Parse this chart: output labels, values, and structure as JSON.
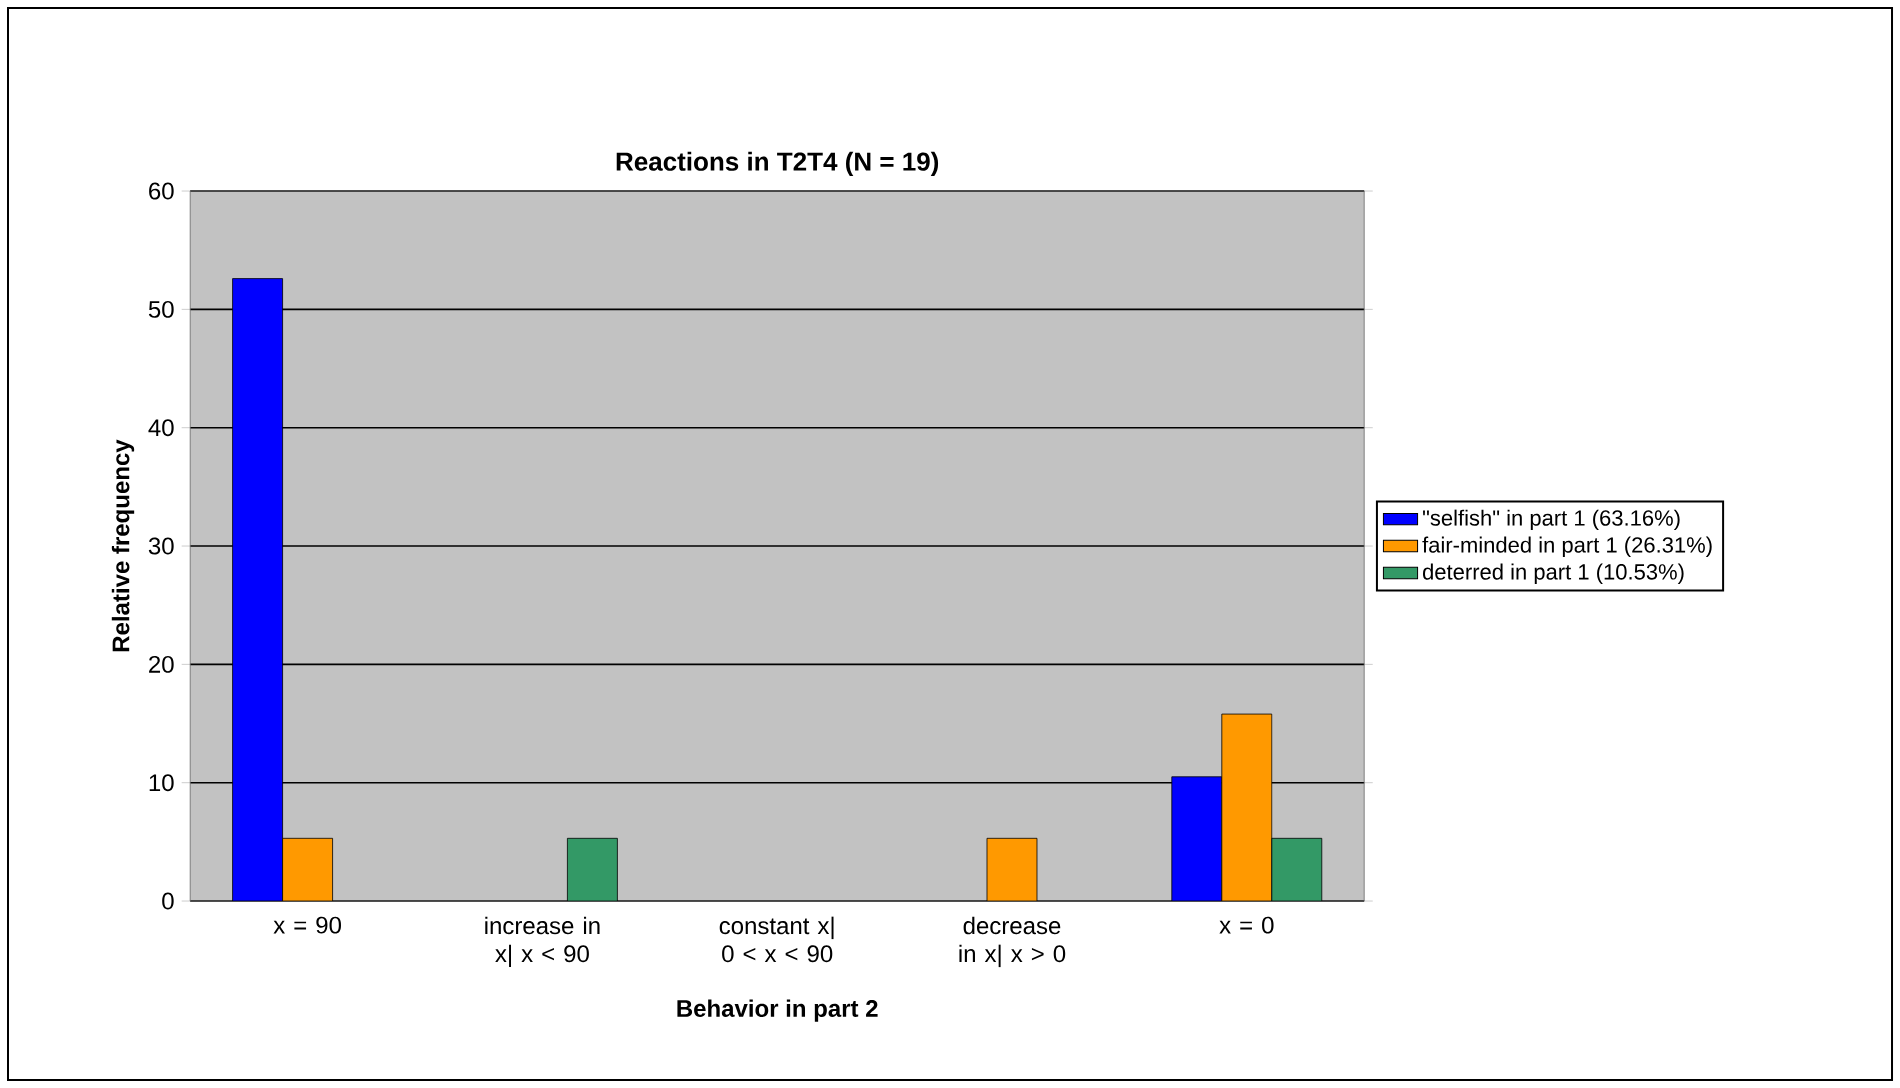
{
  "chart_data": {
    "type": "bar",
    "title": "Reactions in T2T4 (N = 19)",
    "xlabel": "Behavior in part 2",
    "ylabel": "Relative frequency",
    "categories": [
      "x = 90",
      "increase in x| x < 90",
      "constant x| 0 < x < 90",
      "decrease in x| x > 0",
      "x = 0"
    ],
    "series": [
      {
        "name": "\"selfish\" in part 1 (63.16%)",
        "color": "#0000ff",
        "values": [
          52.6,
          null,
          null,
          null,
          10.5
        ]
      },
      {
        "name": "fair-minded in part 1 (26.31%)",
        "color": "#ff9900",
        "values": [
          5.3,
          null,
          null,
          5.3,
          15.8
        ]
      },
      {
        "name": "deterred in part 1 (10.53%)",
        "color": "#339966",
        "values": [
          null,
          5.3,
          null,
          null,
          5.3
        ]
      }
    ],
    "ylim": [
      0,
      60
    ],
    "yticks": [
      0,
      10,
      20,
      30,
      40,
      50,
      60
    ],
    "grid": "y",
    "legend": "right"
  }
}
